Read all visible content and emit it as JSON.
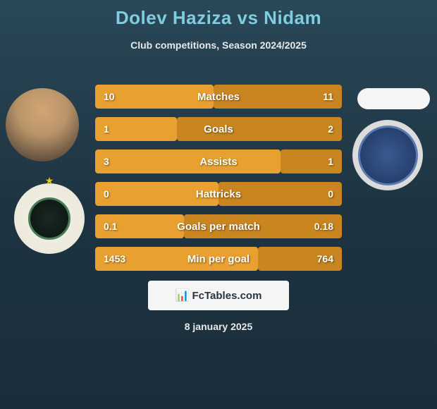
{
  "header": {
    "title": "Dolev Haziza vs Nidam",
    "subtitle": "Club competitions, Season 2024/2025"
  },
  "stats": [
    {
      "left_value": "10",
      "label": "Matches",
      "right_value": "11",
      "left_pct": 48,
      "right_pct": 52
    },
    {
      "left_value": "1",
      "label": "Goals",
      "right_value": "2",
      "left_pct": 33,
      "right_pct": 67
    },
    {
      "left_value": "3",
      "label": "Assists",
      "right_value": "1",
      "left_pct": 75,
      "right_pct": 25
    },
    {
      "left_value": "0",
      "label": "Hattricks",
      "right_value": "0",
      "left_pct": 50,
      "right_pct": 50
    },
    {
      "left_value": "0.1",
      "label": "Goals per match",
      "right_value": "0.18",
      "left_pct": 36,
      "right_pct": 64
    },
    {
      "left_value": "1453",
      "label": "Min per goal",
      "right_value": "764",
      "left_pct": 66,
      "right_pct": 34
    }
  ],
  "footer": {
    "brand": "FcTables.com",
    "date": "8 january 2025"
  },
  "colors": {
    "bar_left": "#e8a030",
    "bar_right": "#c88520",
    "title_color": "#7fcdde",
    "text_color": "#ffffff"
  }
}
